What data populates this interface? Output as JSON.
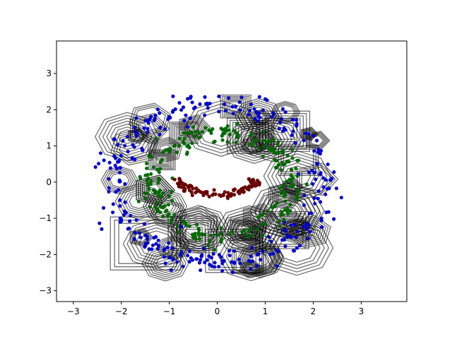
{
  "chart_data": {
    "type": "scatter",
    "title": "",
    "xlabel": "",
    "ylabel": "",
    "xlim": [
      -3.35,
      3.95
    ],
    "ylim": [
      -3.3,
      3.9
    ],
    "x_ticks": [
      -3,
      -2,
      -1,
      0,
      1,
      2,
      3
    ],
    "y_ticks": [
      -3,
      -2,
      -1,
      0,
      1,
      2,
      3
    ],
    "x_tick_labels": [
      "−3",
      "−2",
      "−1",
      "0",
      "1",
      "2",
      "3"
    ],
    "y_tick_labels": [
      "−3",
      "−2",
      "−1",
      "0",
      "1",
      "2",
      "3"
    ],
    "grid": false,
    "legend": "none",
    "series": [
      {
        "color": "#0000cc",
        "approx_count": 320,
        "ring": {
          "center": [
            0.0,
            0.0
          ],
          "radius_x": 2.2,
          "radius_y": 2.2,
          "spread": 0.18,
          "angle_start_deg": 0,
          "angle_end_deg": 360
        }
      },
      {
        "color": "#006600",
        "approx_count": 260,
        "ring": {
          "center": [
            0.1,
            -0.05
          ],
          "radius_x": 1.45,
          "radius_y": 1.45,
          "spread": 0.15,
          "angle_start_deg": 0,
          "angle_end_deg": 360
        }
      },
      {
        "color": "#660000",
        "approx_count": 90,
        "ring": {
          "center": [
            0.0,
            0.2
          ],
          "radius_x": 0.85,
          "radius_y": 0.55,
          "spread": 0.08,
          "angle_start_deg": 190,
          "angle_end_deg": 350
        }
      }
    ],
    "outline_overlay": {
      "color": "#000000",
      "opacity": 0.55,
      "approx_shapes": 60
    }
  }
}
